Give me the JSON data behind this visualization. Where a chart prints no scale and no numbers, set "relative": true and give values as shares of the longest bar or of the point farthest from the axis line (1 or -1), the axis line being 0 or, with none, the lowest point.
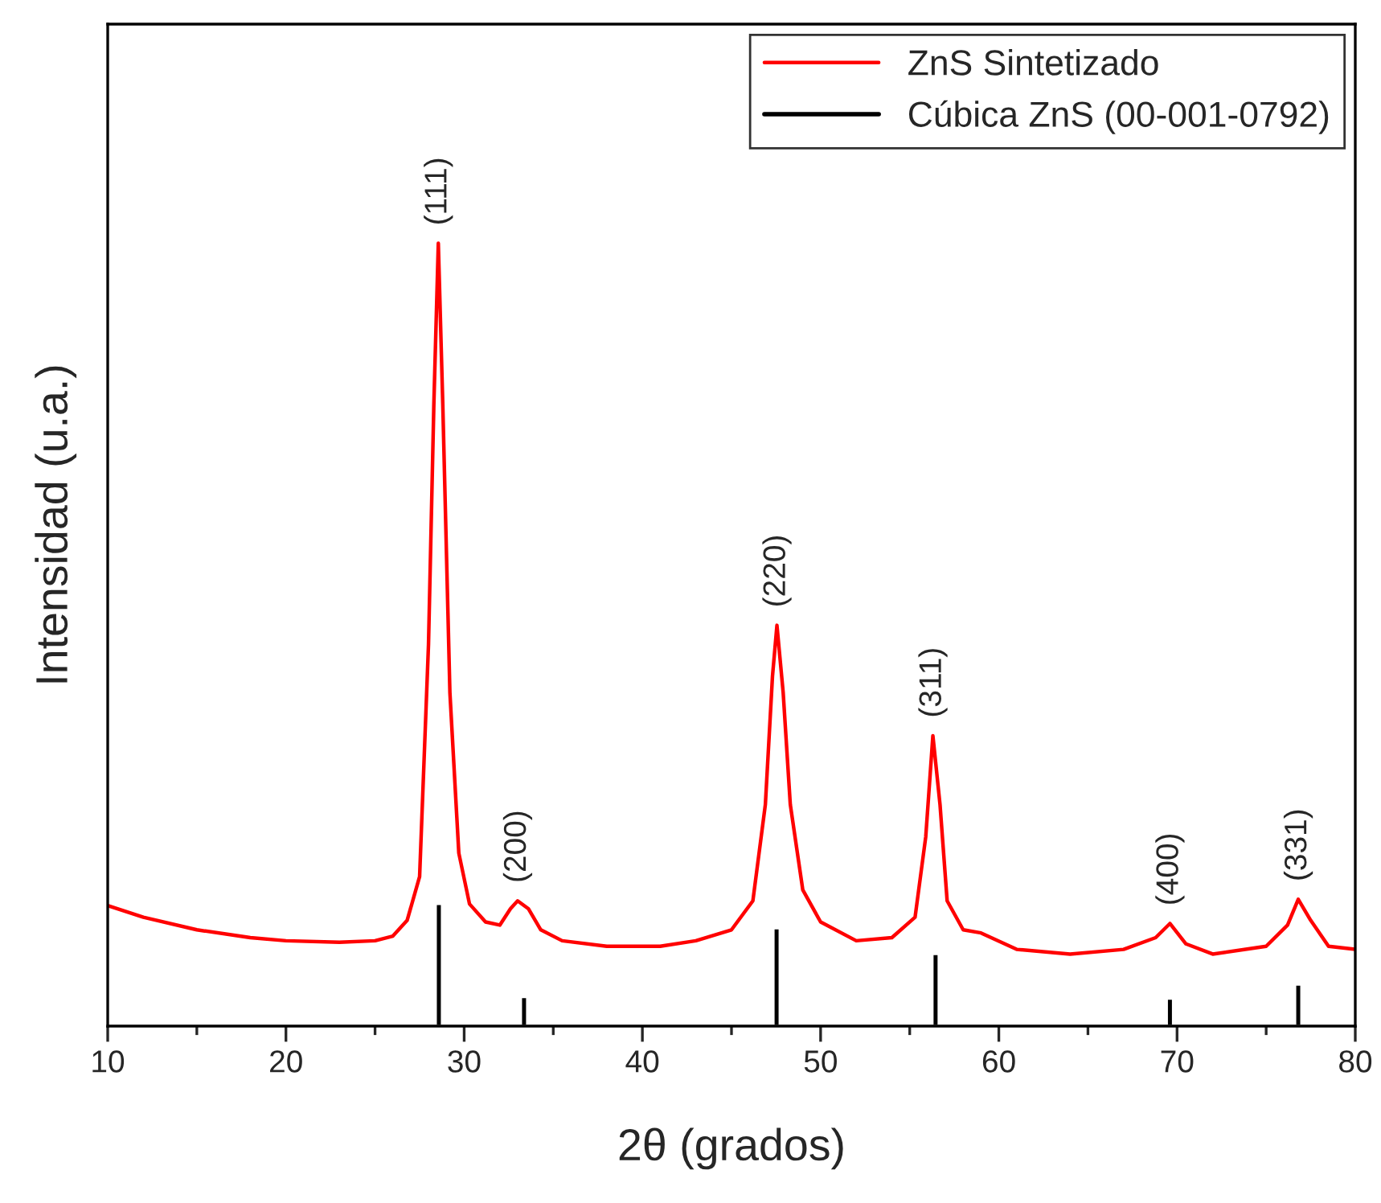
{
  "chart_data": {
    "type": "line",
    "relative": true,
    "xlabel": "2θ (grados)",
    "ylabel": "Intensidad (u.a.)",
    "xlim": [
      10,
      80
    ],
    "xticks": [
      10,
      20,
      30,
      40,
      50,
      60,
      70,
      80
    ],
    "series": [
      {
        "name": "ZnS Sintetizado",
        "color": "#ff0000",
        "x": [
          10,
          12,
          15,
          18,
          20,
          23,
          25,
          26,
          26.8,
          27.5,
          28.0,
          28.3,
          28.55,
          28.8,
          29.2,
          29.7,
          30.3,
          31.2,
          32.0,
          32.6,
          33.0,
          33.6,
          34.3,
          35.5,
          38,
          41,
          43,
          45,
          46.2,
          46.9,
          47.3,
          47.55,
          47.9,
          48.3,
          49,
          50,
          52,
          54,
          55.3,
          55.9,
          56.3,
          56.7,
          57.1,
          58,
          59,
          61,
          64,
          67,
          68.8,
          69.6,
          70.5,
          72,
          75,
          76.2,
          76.8,
          77.5,
          78.5,
          80
        ],
        "values": [
          0.154,
          0.139,
          0.123,
          0.113,
          0.109,
          0.107,
          0.109,
          0.115,
          0.135,
          0.191,
          0.488,
          0.795,
          1.0,
          0.795,
          0.426,
          0.221,
          0.156,
          0.133,
          0.129,
          0.15,
          0.16,
          0.15,
          0.123,
          0.109,
          0.102,
          0.102,
          0.109,
          0.123,
          0.16,
          0.283,
          0.447,
          0.512,
          0.426,
          0.283,
          0.174,
          0.133,
          0.109,
          0.113,
          0.139,
          0.242,
          0.371,
          0.283,
          0.16,
          0.123,
          0.119,
          0.098,
          0.092,
          0.098,
          0.113,
          0.131,
          0.105,
          0.092,
          0.102,
          0.129,
          0.162,
          0.135,
          0.102,
          0.098
        ]
      },
      {
        "name": "Cúbica ZnS (00-001-0792)",
        "type": "bar",
        "color": "#000000",
        "x": [
          28.58,
          33.36,
          47.53,
          56.45,
          69.6,
          76.8
        ],
        "values": [
          0.156,
          0.037,
          0.125,
          0.092,
          0.035,
          0.053
        ]
      }
    ],
    "annotations": [
      {
        "text": "(111)",
        "x": 28.55,
        "y": 1.0
      },
      {
        "text": "(200)",
        "x": 33.0,
        "y": 0.16
      },
      {
        "text": "(220)",
        "x": 47.55,
        "y": 0.512
      },
      {
        "text": "(311)",
        "x": 56.3,
        "y": 0.371
      },
      {
        "text": "(400)",
        "x": 69.6,
        "y": 0.131
      },
      {
        "text": "(331)",
        "x": 76.8,
        "y": 0.162
      }
    ],
    "legend": "top right",
    "grid": false,
    "marker": "none",
    "line_style": "solid"
  }
}
